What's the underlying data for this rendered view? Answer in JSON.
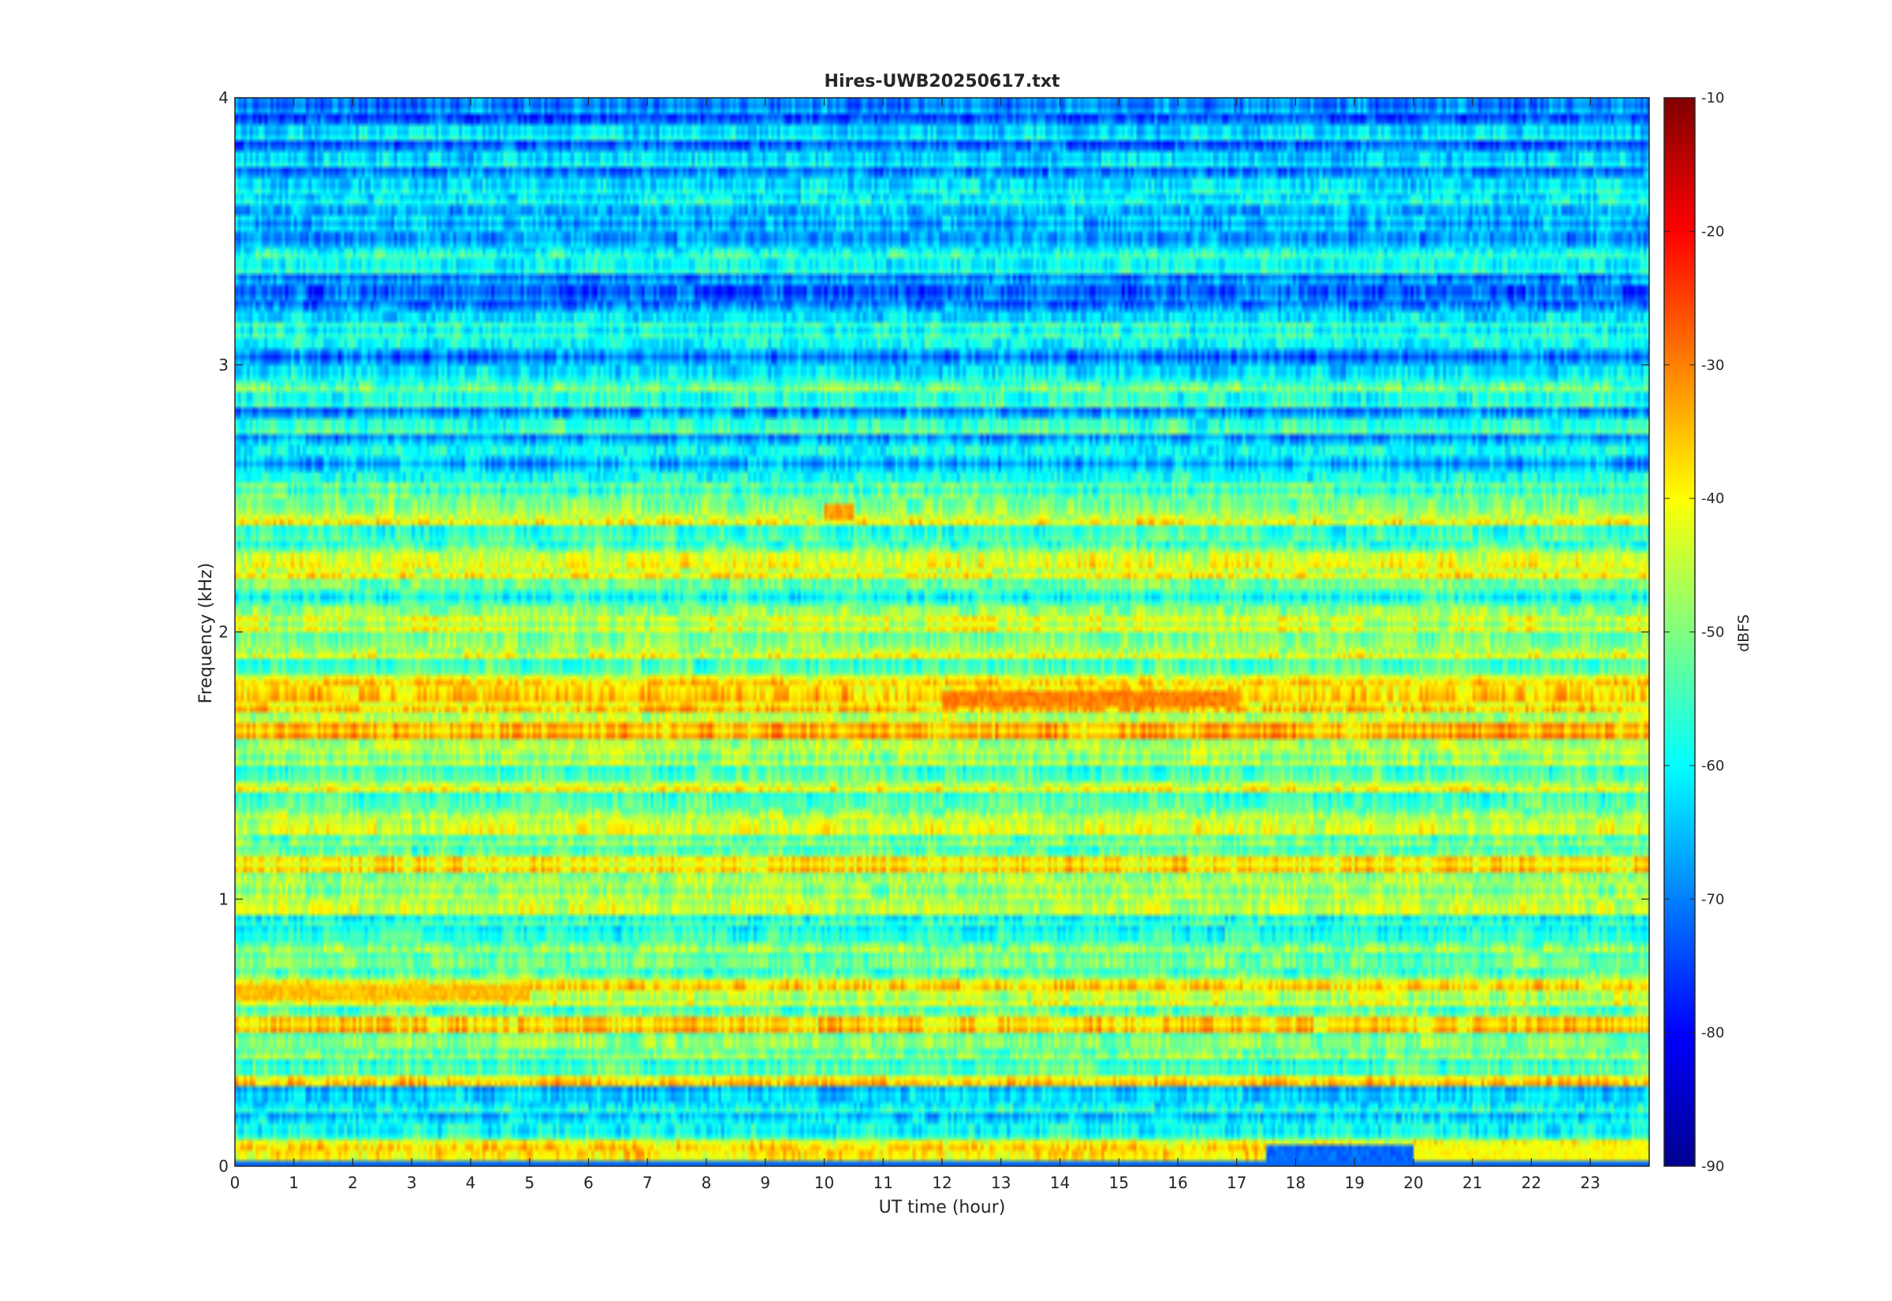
{
  "chart_data": {
    "type": "heatmap",
    "title": "Hires-UWB20250617.txt",
    "xlabel": "UT time (hour)",
    "ylabel": "Frequency (kHz)",
    "colorbar_label": "dBFS",
    "colormap": "jet",
    "xlim": [
      0,
      24
    ],
    "ylim": [
      0,
      4
    ],
    "clim": [
      -90,
      -10
    ],
    "x_ticks": [
      0,
      1,
      2,
      3,
      4,
      5,
      6,
      7,
      8,
      9,
      10,
      11,
      12,
      13,
      14,
      15,
      16,
      17,
      18,
      19,
      20,
      21,
      22,
      23
    ],
    "y_ticks": [
      0,
      1,
      2,
      3,
      4
    ],
    "colorbar_ticks": [
      -90,
      -80,
      -70,
      -60,
      -50,
      -40,
      -30,
      -20,
      -10
    ],
    "band_levels_dBFS": [
      {
        "band_kHz": [
          0.0,
          0.1
        ],
        "level": -40
      },
      {
        "band_kHz": [
          0.1,
          0.3
        ],
        "level": -55
      },
      {
        "band_kHz": [
          0.3,
          0.5
        ],
        "level": -46
      },
      {
        "band_kHz": [
          0.5,
          0.7
        ],
        "level": -44
      },
      {
        "band_kHz": [
          0.7,
          1.0
        ],
        "level": -50
      },
      {
        "band_kHz": [
          1.0,
          1.3
        ],
        "level": -45
      },
      {
        "band_kHz": [
          1.3,
          1.6
        ],
        "level": -47
      },
      {
        "band_kHz": [
          1.6,
          1.8
        ],
        "level": -42
      },
      {
        "band_kHz": [
          1.8,
          2.0
        ],
        "level": -47
      },
      {
        "band_kHz": [
          2.0,
          2.2
        ],
        "level": -52
      },
      {
        "band_kHz": [
          2.2,
          2.5
        ],
        "level": -50
      },
      {
        "band_kHz": [
          2.5,
          3.0
        ],
        "level": -60
      },
      {
        "band_kHz": [
          3.0,
          3.5
        ],
        "level": -64
      },
      {
        "band_kHz": [
          3.5,
          4.0
        ],
        "level": -66
      }
    ],
    "features": [
      {
        "freq_kHz": 1.75,
        "t_hours": [
          12.0,
          17.0
        ],
        "level": -30
      },
      {
        "freq_kHz": 0.65,
        "t_hours": [
          0.0,
          5.0
        ],
        "level": -35
      },
      {
        "freq_kHz": 2.45,
        "t_hours": [
          10.0,
          10.5
        ],
        "level": -32
      },
      {
        "freq_kHz": 0.04,
        "t_hours": [
          20.0,
          24.0
        ],
        "level": -40
      },
      {
        "freq_kHz": 0.04,
        "t_hours": [
          17.5,
          20.0
        ],
        "level": -72
      }
    ],
    "grid": false,
    "colorbar_position": "right"
  }
}
